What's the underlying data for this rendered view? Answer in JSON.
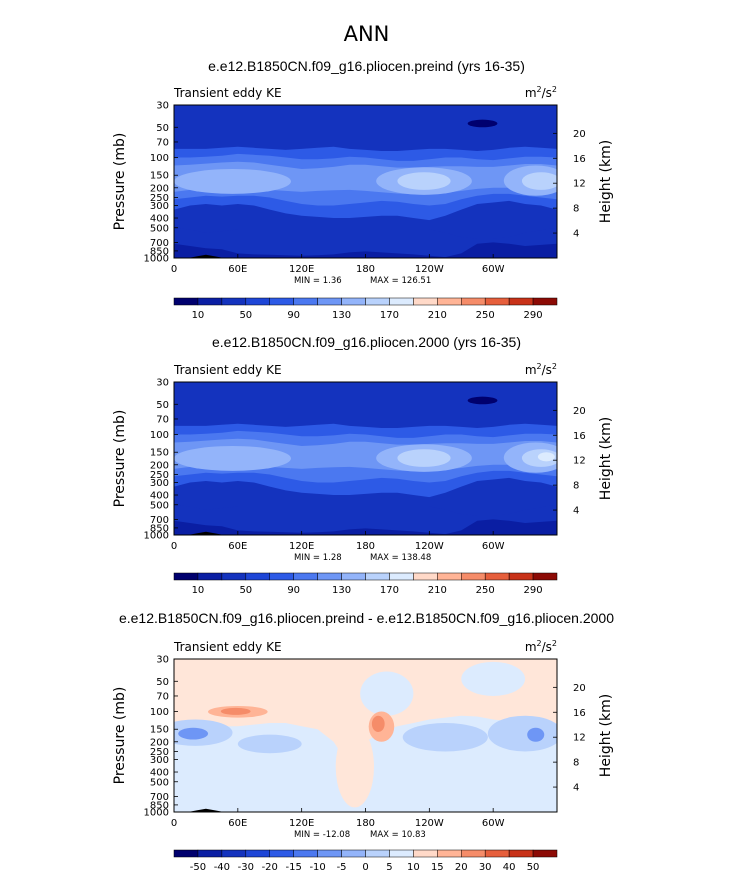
{
  "figure": {
    "title": "ANN"
  },
  "panels": [
    {
      "title": "e.e12.B1850CN.f09_g16.pliocen.preind (yrs 16-35)",
      "left_label": "Transient eddy KE",
      "units_base": "m",
      "units_exp1": "2",
      "units_mid": "/s",
      "units_exp2": "2",
      "min_text": "MIN =    1.36",
      "max_text": "MAX = 126.51",
      "ylabel": "Pressure  (mb)",
      "ylabel_right": "Height  (km)",
      "colorbar_labels": [
        "10",
        "50",
        "90",
        "130",
        "170",
        "210",
        "250",
        "290"
      ]
    },
    {
      "title": "e.e12.B1850CN.f09_g16.pliocen.2000 (yrs 16-35)",
      "left_label": "Transient eddy KE",
      "units_base": "m",
      "units_exp1": "2",
      "units_mid": "/s",
      "units_exp2": "2",
      "min_text": "MIN =    1.28",
      "max_text": "MAX = 138.48",
      "ylabel": "Pressure  (mb)",
      "ylabel_right": "Height  (km)",
      "colorbar_labels": [
        "10",
        "50",
        "90",
        "130",
        "170",
        "210",
        "250",
        "290"
      ]
    },
    {
      "title": "e.e12.B1850CN.f09_g16.pliocen.preind - e.e12.B1850CN.f09_g16.pliocen.2000",
      "left_label": "Transient eddy KE",
      "units_base": "m",
      "units_exp1": "2",
      "units_mid": "/s",
      "units_exp2": "2",
      "min_text": "MIN = -12.08",
      "max_text": "MAX =  10.83",
      "ylabel": "Pressure  (mb)",
      "ylabel_right": "Height  (km)",
      "colorbar_labels": [
        "-50",
        "-40",
        "-30",
        "-20",
        "-15",
        "-10",
        "-5",
        "0",
        "5",
        "10",
        "15",
        "20",
        "30",
        "40",
        "50"
      ]
    }
  ],
  "chart_data": [
    {
      "type": "heatmap",
      "title": "e.e12.B1850CN.f09_g16.pliocen.preind (yrs 16-35)",
      "variable": "Transient eddy KE",
      "units": "m2/s2",
      "ylabel": "Pressure (mb)",
      "ylabel_right": "Height (km)",
      "x_ticks": [
        "0",
        "60E",
        "120E",
        "180",
        "120W",
        "60W"
      ],
      "x_tick_values": [
        0,
        60,
        120,
        180,
        240,
        300
      ],
      "xlim": [
        0,
        360
      ],
      "y_ticks": [
        "30",
        "50",
        "70",
        "100",
        "150",
        "200",
        "250",
        "300",
        "400",
        "500",
        "700",
        "850",
        "1000"
      ],
      "y_tick_values": [
        30,
        50,
        70,
        100,
        150,
        200,
        250,
        300,
        400,
        500,
        700,
        850,
        1000
      ],
      "ylim": [
        1000,
        30
      ],
      "y_scale": "log",
      "y_right_ticks": [
        "4",
        "8",
        "12",
        "16",
        "20"
      ],
      "y_right_tick_values": [
        4,
        8,
        12,
        16,
        20
      ],
      "contour_levels": [
        10,
        30,
        50,
        70,
        90,
        110,
        130,
        150,
        170,
        190,
        210,
        230,
        250,
        270,
        290
      ],
      "min": 1.36,
      "max": 126.51,
      "colors": [
        "#00006e",
        "#0a1ea3",
        "#1433be",
        "#1e46d7",
        "#2d5ae6",
        "#4b78f0",
        "#6e96f5",
        "#93b4fa",
        "#b9d2fc",
        "#dcebfe",
        "#ffd9c8",
        "#ffb496",
        "#f58c69",
        "#e65f3c",
        "#c83219",
        "#8c0a05"
      ]
    },
    {
      "type": "heatmap",
      "title": "e.e12.B1850CN.f09_g16.pliocen.2000 (yrs 16-35)",
      "variable": "Transient eddy KE",
      "units": "m2/s2",
      "ylabel": "Pressure (mb)",
      "ylabel_right": "Height (km)",
      "x_ticks": [
        "0",
        "60E",
        "120E",
        "180",
        "120W",
        "60W"
      ],
      "x_tick_values": [
        0,
        60,
        120,
        180,
        240,
        300
      ],
      "xlim": [
        0,
        360
      ],
      "y_ticks": [
        "30",
        "50",
        "70",
        "100",
        "150",
        "200",
        "250",
        "300",
        "400",
        "500",
        "700",
        "850",
        "1000"
      ],
      "y_tick_values": [
        30,
        50,
        70,
        100,
        150,
        200,
        250,
        300,
        400,
        500,
        700,
        850,
        1000
      ],
      "ylim": [
        1000,
        30
      ],
      "y_scale": "log",
      "y_right_ticks": [
        "4",
        "8",
        "12",
        "16",
        "20"
      ],
      "y_right_tick_values": [
        4,
        8,
        12,
        16,
        20
      ],
      "contour_levels": [
        10,
        30,
        50,
        70,
        90,
        110,
        130,
        150,
        170,
        190,
        210,
        230,
        250,
        270,
        290
      ],
      "min": 1.28,
      "max": 138.48,
      "colors": [
        "#00006e",
        "#0a1ea3",
        "#1433be",
        "#1e46d7",
        "#2d5ae6",
        "#4b78f0",
        "#6e96f5",
        "#93b4fa",
        "#b9d2fc",
        "#dcebfe",
        "#ffd9c8",
        "#ffb496",
        "#f58c69",
        "#e65f3c",
        "#c83219",
        "#8c0a05"
      ]
    },
    {
      "type": "heatmap",
      "title": "e.e12.B1850CN.f09_g16.pliocen.preind - e.e12.B1850CN.f09_g16.pliocen.2000",
      "variable": "Transient eddy KE",
      "units": "m2/s2",
      "ylabel": "Pressure (mb)",
      "ylabel_right": "Height (km)",
      "x_ticks": [
        "0",
        "60E",
        "120E",
        "180",
        "120W",
        "60W"
      ],
      "x_tick_values": [
        0,
        60,
        120,
        180,
        240,
        300
      ],
      "xlim": [
        0,
        360
      ],
      "y_ticks": [
        "30",
        "50",
        "70",
        "100",
        "150",
        "200",
        "250",
        "300",
        "400",
        "500",
        "700",
        "850",
        "1000"
      ],
      "y_tick_values": [
        30,
        50,
        70,
        100,
        150,
        200,
        250,
        300,
        400,
        500,
        700,
        850,
        1000
      ],
      "ylim": [
        1000,
        30
      ],
      "y_scale": "log",
      "y_right_ticks": [
        "4",
        "8",
        "12",
        "16",
        "20"
      ],
      "y_right_tick_values": [
        4,
        8,
        12,
        16,
        20
      ],
      "contour_levels": [
        -50,
        -40,
        -30,
        -20,
        -15,
        -10,
        -5,
        0,
        5,
        10,
        15,
        20,
        30,
        40,
        50
      ],
      "min": -12.08,
      "max": 10.83,
      "colors": [
        "#00006e",
        "#0a1ea3",
        "#1433be",
        "#1e46d7",
        "#2d5ae6",
        "#4b78f0",
        "#6e96f5",
        "#93b4fa",
        "#b9d2fc",
        "#dcebfe",
        "#ffd9c8",
        "#ffb496",
        "#f58c69",
        "#e65f3c",
        "#c83219",
        "#8c0a05"
      ]
    }
  ]
}
